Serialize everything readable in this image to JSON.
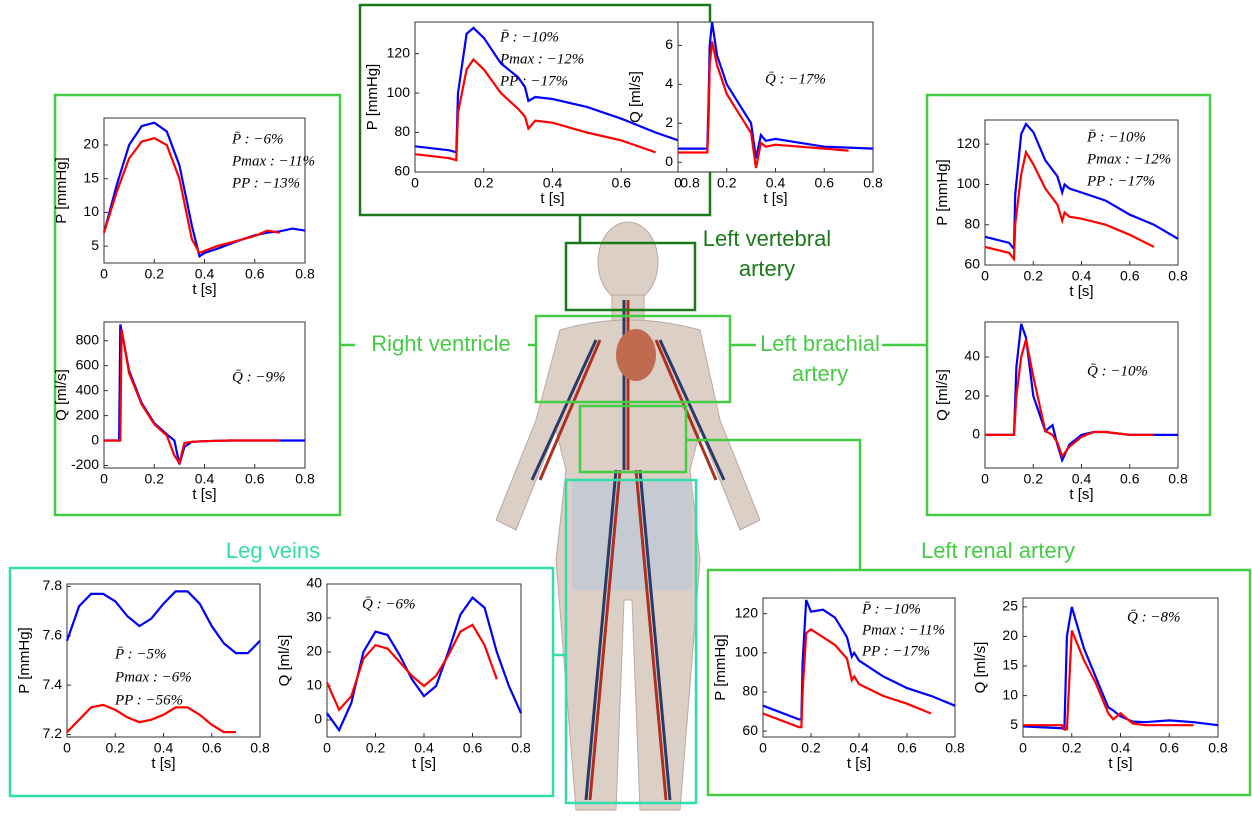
{
  "labels": {
    "right_ventricle": "Right ventricle",
    "left_vertebral": [
      "Left vertebral",
      "artery"
    ],
    "left_brachial": [
      "Left brachial",
      "artery"
    ],
    "leg_veins": "Leg veins",
    "left_renal": "Left renal artery"
  },
  "chart_data": [
    {
      "type": "line",
      "region": "Left vertebral artery",
      "xlabel": "t [s]",
      "ylabel": "P [mmHg]",
      "xlim": [
        0,
        0.8
      ],
      "ylim": [
        60,
        136
      ],
      "xticks": [
        0,
        0.2,
        0.4,
        0.6,
        0.8
      ],
      "yticks": [
        60,
        80,
        100,
        120
      ],
      "annotations": [
        "P̄ : −10%",
        "Pmax : −12%",
        "PP : −17%"
      ],
      "x": [
        0,
        0.05,
        0.1,
        0.12,
        0.125,
        0.15,
        0.17,
        0.2,
        0.25,
        0.3,
        0.32,
        0.33,
        0.35,
        0.4,
        0.5,
        0.6,
        0.7,
        0.8
      ],
      "series": [
        {
          "color": "#0000ff",
          "values": [
            73,
            72,
            71,
            70,
            100,
            130,
            133,
            128,
            115,
            108,
            103,
            96,
            98,
            97,
            93,
            87,
            80,
            74
          ]
        },
        {
          "color": "#ff0000",
          "values": [
            69,
            68,
            67,
            66,
            90,
            112,
            117,
            112,
            100,
            92,
            88,
            82,
            86,
            85,
            80,
            76,
            70,
            null
          ]
        }
      ]
    },
    {
      "type": "line",
      "region": "Left vertebral artery",
      "xlabel": "t [s]",
      "ylabel": "Q [ml/s]",
      "xlim": [
        0,
        0.8
      ],
      "ylim": [
        -0.5,
        7.2
      ],
      "xticks": [
        0,
        0.2,
        0.4,
        0.6,
        0.8
      ],
      "yticks": [
        0,
        2,
        4,
        6
      ],
      "annotations": [
        "Q̄ : −17%"
      ],
      "x": [
        0,
        0.1,
        0.12,
        0.125,
        0.13,
        0.14,
        0.16,
        0.2,
        0.25,
        0.3,
        0.32,
        0.34,
        0.36,
        0.4,
        0.5,
        0.6,
        0.7,
        0.8
      ],
      "series": [
        {
          "color": "#0000ff",
          "values": [
            0.7,
            0.7,
            0.7,
            3,
            6,
            7.2,
            5.5,
            4,
            3,
            2,
            0.2,
            1.4,
            1.1,
            1.2,
            1,
            0.8,
            0.75,
            0.7
          ]
        },
        {
          "color": "#ff0000",
          "values": [
            0.5,
            0.5,
            0.5,
            2,
            5,
            6.2,
            5,
            3.5,
            2.5,
            1.5,
            -0.3,
            1,
            0.8,
            0.9,
            0.8,
            0.7,
            0.6,
            null
          ]
        }
      ]
    },
    {
      "type": "line",
      "region": "Right ventricle",
      "xlabel": "t [s]",
      "ylabel": "P [mmHg]",
      "xlim": [
        0,
        0.8
      ],
      "ylim": [
        2.5,
        24
      ],
      "xticks": [
        0,
        0.2,
        0.4,
        0.6,
        0.8
      ],
      "yticks": [
        5,
        10,
        15,
        20
      ],
      "annotations": [
        "P̄ : −6%",
        "Pmax : −11%",
        "PP : −13%"
      ],
      "x": [
        0,
        0.05,
        0.1,
        0.15,
        0.2,
        0.25,
        0.3,
        0.35,
        0.38,
        0.4,
        0.45,
        0.5,
        0.55,
        0.6,
        0.65,
        0.7,
        0.75,
        0.8
      ],
      "series": [
        {
          "color": "#0000ff",
          "values": [
            7,
            14,
            20,
            22.8,
            23.3,
            22,
            17,
            8,
            3.5,
            4,
            4.6,
            5.3,
            6,
            6.6,
            7,
            7.2,
            7.6,
            7.3
          ]
        },
        {
          "color": "#ff0000",
          "values": [
            7,
            13,
            18,
            20.5,
            21,
            20,
            15,
            6,
            4,
            4.3,
            5,
            5.5,
            6,
            6.5,
            7.3,
            7,
            null,
            null
          ]
        }
      ]
    },
    {
      "type": "line",
      "region": "Right ventricle",
      "xlabel": "t [s]",
      "ylabel": "Q [ml/s]",
      "xlim": [
        0,
        0.8
      ],
      "ylim": [
        -220,
        950
      ],
      "xticks": [
        0,
        0.2,
        0.4,
        0.6,
        0.8
      ],
      "yticks": [
        -200,
        0,
        200,
        400,
        600,
        800
      ],
      "annotations": [
        "Q̄ : −9%"
      ],
      "x": [
        0,
        0.06,
        0.065,
        0.07,
        0.1,
        0.15,
        0.2,
        0.25,
        0.28,
        0.3,
        0.32,
        0.35,
        0.4,
        0.5,
        0.6,
        0.7,
        0.8
      ],
      "series": [
        {
          "color": "#0000ff",
          "values": [
            0,
            0,
            930,
            880,
            560,
            300,
            140,
            50,
            0,
            -190,
            -50,
            -10,
            -5,
            0,
            0,
            0,
            0
          ]
        },
        {
          "color": "#ff0000",
          "values": [
            0,
            0,
            0,
            890,
            540,
            290,
            130,
            40,
            -120,
            -180,
            -20,
            -10,
            -5,
            0,
            0,
            0,
            null
          ]
        }
      ]
    },
    {
      "type": "line",
      "region": "Left brachial artery",
      "xlabel": "t [s]",
      "ylabel": "P [mmHg]",
      "xlim": [
        0,
        0.8
      ],
      "ylim": [
        60,
        132
      ],
      "xticks": [
        0,
        0.2,
        0.4,
        0.6,
        0.8
      ],
      "yticks": [
        60,
        80,
        100,
        120
      ],
      "annotations": [
        "P̄ : −10%",
        "Pmax : −12%",
        "PP : −17%"
      ],
      "x": [
        0,
        0.1,
        0.12,
        0.125,
        0.15,
        0.17,
        0.2,
        0.25,
        0.3,
        0.32,
        0.33,
        0.35,
        0.4,
        0.5,
        0.6,
        0.7,
        0.8
      ],
      "series": [
        {
          "color": "#0000ff",
          "values": [
            74,
            71,
            68,
            95,
            125,
            130,
            126,
            112,
            104,
            96,
            100,
            98,
            96,
            92,
            85,
            80,
            73
          ]
        },
        {
          "color": "#ff0000",
          "values": [
            69,
            66,
            63,
            80,
            105,
            116,
            110,
            98,
            90,
            82,
            86,
            84,
            83,
            80,
            75,
            69,
            null
          ]
        }
      ]
    },
    {
      "type": "line",
      "region": "Left brachial artery",
      "xlabel": "t [s]",
      "ylabel": "Q [ml/s]",
      "xlim": [
        0,
        0.8
      ],
      "ylim": [
        -17,
        58
      ],
      "xticks": [
        0,
        0.2,
        0.4,
        0.6,
        0.8
      ],
      "yticks": [
        0,
        20,
        40
      ],
      "annotations": [
        "Q̄ : −10%"
      ],
      "x": [
        0,
        0.1,
        0.12,
        0.13,
        0.15,
        0.17,
        0.2,
        0.25,
        0.28,
        0.3,
        0.32,
        0.35,
        0.4,
        0.45,
        0.5,
        0.6,
        0.7,
        0.8
      ],
      "series": [
        {
          "color": "#0000ff",
          "values": [
            0,
            0,
            0,
            35,
            57,
            50,
            20,
            2,
            5,
            -5,
            -13,
            -5,
            0,
            1.5,
            1.5,
            0,
            0,
            0
          ]
        },
        {
          "color": "#ff0000",
          "values": [
            0,
            0,
            0,
            20,
            40,
            49,
            30,
            2,
            0,
            -4,
            -11,
            -6,
            -1,
            1.5,
            1.5,
            0,
            0,
            null
          ]
        }
      ]
    },
    {
      "type": "line",
      "region": "Leg veins",
      "xlabel": "t [s]",
      "ylabel": "P [mmHg]",
      "xlim": [
        0,
        0.8
      ],
      "ylim": [
        7.19,
        7.81
      ],
      "xticks": [
        0,
        0.2,
        0.4,
        0.6,
        0.8
      ],
      "yticks": [
        7.2,
        7.4,
        7.6,
        7.8
      ],
      "annotations": [
        "P̄ : −5%",
        "Pmax : −6%",
        "PP : −56%"
      ],
      "x": [
        0,
        0.05,
        0.1,
        0.15,
        0.2,
        0.25,
        0.3,
        0.35,
        0.4,
        0.45,
        0.5,
        0.55,
        0.6,
        0.65,
        0.7,
        0.75,
        0.8
      ],
      "series": [
        {
          "color": "#0000ff",
          "values": [
            7.58,
            7.72,
            7.77,
            7.77,
            7.74,
            7.68,
            7.64,
            7.67,
            7.73,
            7.78,
            7.78,
            7.73,
            7.64,
            7.57,
            7.53,
            7.53,
            7.58
          ]
        },
        {
          "color": "#ff0000",
          "values": [
            7.21,
            7.26,
            7.31,
            7.32,
            7.3,
            7.27,
            7.25,
            7.26,
            7.28,
            7.31,
            7.31,
            7.28,
            7.24,
            7.21,
            7.21,
            null,
            null
          ]
        }
      ]
    },
    {
      "type": "line",
      "region": "Leg veins",
      "xlabel": "t [s]",
      "ylabel": "Q [ml/s]",
      "xlim": [
        0,
        0.8
      ],
      "ylim": [
        -5,
        40
      ],
      "xticks": [
        0,
        0.2,
        0.4,
        0.6,
        0.8
      ],
      "yticks": [
        0,
        10,
        20,
        30,
        40
      ],
      "annotations": [
        "Q̄ : −6%"
      ],
      "x": [
        0,
        0.05,
        0.1,
        0.15,
        0.2,
        0.25,
        0.3,
        0.35,
        0.4,
        0.45,
        0.5,
        0.55,
        0.6,
        0.65,
        0.7,
        0.75,
        0.8
      ],
      "series": [
        {
          "color": "#0000ff",
          "values": [
            2,
            -3,
            5,
            20,
            26,
            25,
            19,
            12,
            7,
            10,
            20,
            31,
            36,
            33,
            20,
            10,
            2
          ]
        },
        {
          "color": "#ff0000",
          "values": [
            11,
            3,
            7,
            18,
            22,
            21,
            17,
            13,
            10,
            13,
            19,
            26,
            28,
            22,
            12,
            null,
            null
          ]
        }
      ]
    },
    {
      "type": "line",
      "region": "Left renal artery",
      "xlabel": "t [s]",
      "ylabel": "P [mmHg]",
      "xlim": [
        0,
        0.8
      ],
      "ylim": [
        57,
        128
      ],
      "xticks": [
        0,
        0.2,
        0.4,
        0.6,
        0.8
      ],
      "yticks": [
        60,
        80,
        100,
        120
      ],
      "annotations": [
        "P̄ : −10%",
        "Pmax : −11%",
        "PP : −17%"
      ],
      "x": [
        0,
        0.15,
        0.16,
        0.165,
        0.18,
        0.2,
        0.25,
        0.3,
        0.35,
        0.37,
        0.38,
        0.4,
        0.5,
        0.6,
        0.7,
        0.8
      ],
      "series": [
        {
          "color": "#0000ff",
          "values": [
            73,
            66,
            66,
            95,
            127,
            121,
            122,
            118,
            108,
            98,
            100,
            96,
            88,
            82,
            78,
            73
          ]
        },
        {
          "color": "#ff0000",
          "values": [
            69,
            62,
            62,
            80,
            110,
            112,
            108,
            104,
            97,
            86,
            88,
            84,
            78,
            74,
            69,
            null
          ]
        }
      ]
    },
    {
      "type": "line",
      "region": "Left renal artery",
      "xlabel": "t [s]",
      "ylabel": "Q [ml/s]",
      "xlim": [
        0,
        0.8
      ],
      "ylim": [
        3,
        26.5
      ],
      "xticks": [
        0,
        0.2,
        0.4,
        0.6,
        0.8
      ],
      "yticks": [
        5,
        10,
        15,
        20,
        25
      ],
      "annotations": [
        "Q̄ : −8%"
      ],
      "x": [
        0,
        0.15,
        0.16,
        0.17,
        0.18,
        0.2,
        0.25,
        0.3,
        0.35,
        0.37,
        0.4,
        0.45,
        0.5,
        0.6,
        0.7,
        0.8
      ],
      "series": [
        {
          "color": "#0000ff",
          "values": [
            4.8,
            4.5,
            4.5,
            4.3,
            20,
            25,
            18,
            13,
            8,
            7.5,
            6.5,
            5.6,
            5.5,
            5.8,
            5.5,
            5
          ]
        },
        {
          "color": "#ff0000",
          "values": [
            5,
            5,
            5,
            4.3,
            4.3,
            21,
            16,
            12,
            7,
            6,
            7,
            5.3,
            5,
            5,
            5,
            null
          ]
        }
      ]
    }
  ]
}
